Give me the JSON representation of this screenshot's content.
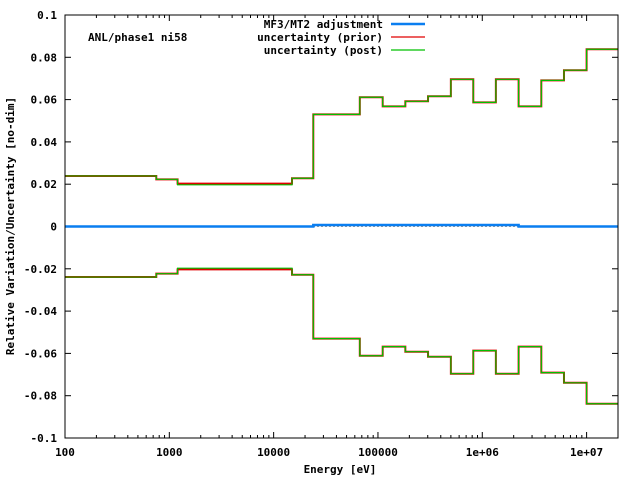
{
  "chart_data": {
    "type": "line",
    "title": "",
    "annotation": "ANL/phase1 ni58",
    "xlabel": "Energy [eV]",
    "ylabel": "Relative Variation/Uncertainty [no-dim]",
    "xscale": "log",
    "xlim": [
      100,
      20000000
    ],
    "ylim": [
      -0.1,
      0.1
    ],
    "xticks": [
      {
        "v": 100,
        "l": "100"
      },
      {
        "v": 1000,
        "l": "1000"
      },
      {
        "v": 10000,
        "l": "10000"
      },
      {
        "v": 100000,
        "l": "100000"
      },
      {
        "v": 1000000,
        "l": "1e+06"
      },
      {
        "v": 10000000,
        "l": "1e+07"
      }
    ],
    "yticks": [
      {
        "v": 0.1,
        "l": "0.1"
      },
      {
        "v": 0.08,
        "l": "0.08"
      },
      {
        "v": 0.06,
        "l": "0.06"
      },
      {
        "v": 0.04,
        "l": "0.04"
      },
      {
        "v": 0.02,
        "l": "0.02"
      },
      {
        "v": 0,
        "l": "0"
      },
      {
        "v": -0.02,
        "l": "-0.02"
      },
      {
        "v": -0.04,
        "l": "-0.04"
      },
      {
        "v": -0.06,
        "l": "-0.06"
      },
      {
        "v": -0.08,
        "l": "-0.08"
      },
      {
        "v": -0.1,
        "l": "-0.1"
      }
    ],
    "legend_position": "top-right",
    "group_bounds": [
      100,
      750,
      1200,
      15000,
      24000,
      67000,
      111000,
      183000,
      302000,
      500000,
      820000,
      1350000,
      2230000,
      3680000,
      6070000,
      10000000,
      20000000
    ],
    "series": [
      {
        "name": "MF3/MT2 adjustment",
        "color": "#0a7ef0",
        "values": [
          0,
          0,
          0,
          0,
          0.0007,
          0.0007,
          0.0007,
          0.0007,
          0.0007,
          0.0007,
          0.0007,
          0.0007,
          0,
          0,
          0,
          0
        ]
      },
      {
        "name": "uncertainty (prior)",
        "color": "#e00000",
        "values": [
          0.0239,
          0.0223,
          0.0203,
          0.0228,
          0.053,
          0.0611,
          0.0568,
          0.0592,
          0.0616,
          0.0696,
          0.0587,
          0.0696,
          0.0568,
          0.0691,
          0.0739,
          0.0838
        ]
      },
      {
        "name": "uncertainty (post)",
        "color": "#00c000",
        "values": [
          0.0239,
          0.0223,
          0.0197,
          0.0228,
          0.053,
          0.0611,
          0.0568,
          0.0592,
          0.0616,
          0.0696,
          0.0587,
          0.0696,
          0.0568,
          0.0691,
          0.0739,
          0.0838
        ]
      }
    ]
  }
}
